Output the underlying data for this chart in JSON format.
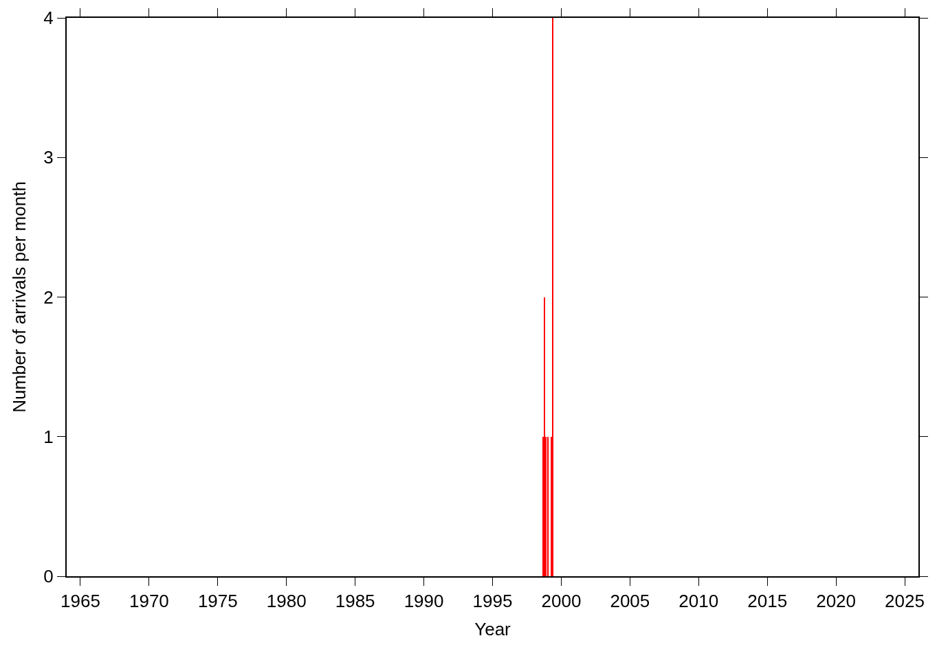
{
  "chart_data": {
    "type": "histogram",
    "xlabel": "Year",
    "ylabel": "Number of arrivals per month",
    "bins": [
      1998.667,
      1998.75,
      1998.833,
      1998.917,
      1999.0,
      1999.083,
      1999.25,
      1999.333,
      1999.417
    ],
    "values": [
      1,
      2,
      1,
      0,
      1,
      0,
      1,
      4
    ],
    "color": "#ff0000",
    "xlim": [
      1964,
      2026
    ],
    "xticks": [
      1965,
      1970,
      1975,
      1980,
      1985,
      1990,
      1995,
      2000,
      2005,
      2010,
      2015,
      2020,
      2025
    ],
    "ylim": [
      0,
      4
    ],
    "yticks": [
      0,
      1,
      2,
      3,
      4
    ]
  }
}
